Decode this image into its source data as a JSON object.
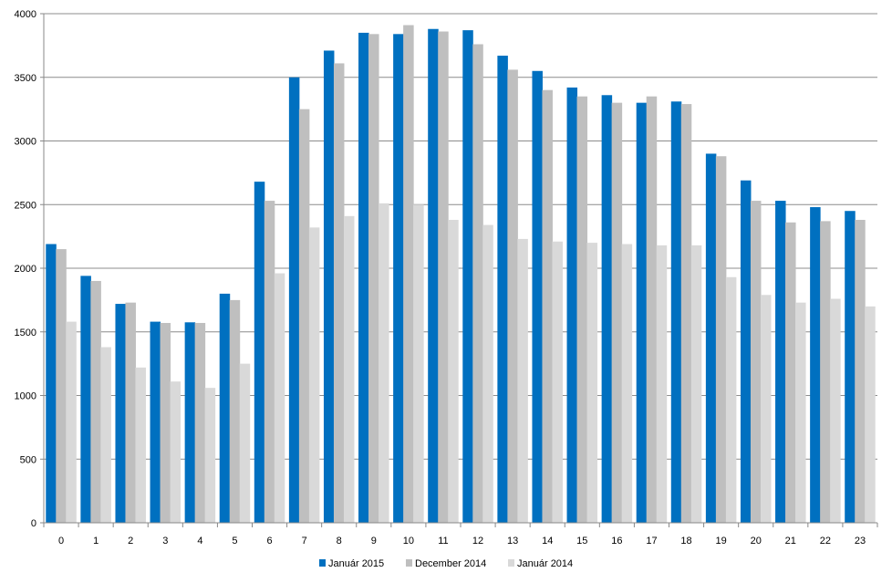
{
  "chart_data": {
    "type": "bar",
    "categories": [
      "0",
      "1",
      "2",
      "3",
      "4",
      "5",
      "6",
      "7",
      "8",
      "9",
      "10",
      "11",
      "12",
      "13",
      "14",
      "15",
      "16",
      "17",
      "18",
      "19",
      "20",
      "21",
      "22",
      "23"
    ],
    "series": [
      {
        "name": "Január 2015",
        "color": "#0070c0",
        "values": [
          2190,
          1940,
          1720,
          1580,
          1575,
          1800,
          2680,
          3500,
          3710,
          3850,
          3840,
          3880,
          3870,
          3670,
          3550,
          3420,
          3360,
          3300,
          3310,
          2900,
          2690,
          2530,
          2480,
          2450
        ]
      },
      {
        "name": "December 2014",
        "color": "#bfbfbf",
        "values": [
          2150,
          1900,
          1730,
          1570,
          1570,
          1750,
          2530,
          3250,
          3610,
          3840,
          3910,
          3860,
          3760,
          3560,
          3400,
          3350,
          3300,
          3350,
          3290,
          2880,
          2530,
          2360,
          2370,
          2380
        ]
      },
      {
        "name": "Január 2014",
        "color": "#d9d9d9",
        "values": [
          1580,
          1380,
          1220,
          1110,
          1060,
          1250,
          1960,
          2320,
          2410,
          2510,
          2500,
          2380,
          2340,
          2230,
          2210,
          2200,
          2190,
          2180,
          2180,
          1930,
          1790,
          1730,
          1760,
          1700
        ]
      }
    ],
    "yticks": [
      "0",
      "500",
      "1000",
      "1500",
      "2000",
      "2500",
      "3000",
      "3500",
      "4000"
    ],
    "ylim": [
      0,
      4000
    ],
    "grid": true,
    "legend_position": "bottom",
    "title": "",
    "xlabel": "",
    "ylabel": ""
  }
}
